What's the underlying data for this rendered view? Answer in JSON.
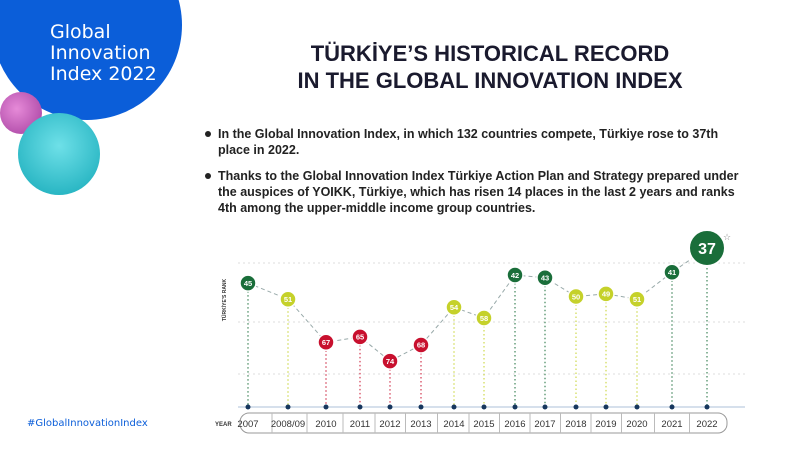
{
  "logo": {
    "text_lines": [
      "Global",
      "Innovation",
      "Index 2022"
    ]
  },
  "title": {
    "line1": "TÜRKİYE’S HISTORICAL RECORD",
    "line2": "IN THE GLOBAL INNOVATION INDEX"
  },
  "bullets": [
    "In the Global Innovation Index, in which 132 countries compete, Türkiye rose to 37th place in 2022.",
    "Thanks to the Global Innovation Index Türkiye Action Plan and Strategy prepared under the auspices of YOIKK, Türkiye, which has risen 14 places in the last 2 years and ranks 4th among the upper-middle income group countries."
  ],
  "hashtag": "#GlobalInnovationIndex",
  "colors": {
    "brand_blue": "#0b5ed9",
    "good": "#1a6e3a",
    "medium": "#c5d12a",
    "poor": "#c8102e"
  },
  "chart_data": {
    "type": "line",
    "ylabel": "TÜRKİYE'S RANK",
    "xlabel": "YEAR",
    "y_inverted": true,
    "grid": true,
    "categories": [
      "2007",
      "2008/09",
      "2010",
      "2011",
      "2012",
      "2013",
      "2014",
      "2015",
      "2016",
      "2017",
      "2018",
      "2019",
      "2020",
      "2021",
      "2022"
    ],
    "values": [
      45,
      51,
      67,
      65,
      74,
      68,
      54,
      58,
      42,
      43,
      50,
      49,
      51,
      41,
      37
    ],
    "point_colors": [
      "good",
      "medium",
      "poor",
      "poor",
      "poor",
      "poor",
      "medium",
      "medium",
      "good",
      "good",
      "medium",
      "medium",
      "medium",
      "good",
      "good"
    ]
  }
}
